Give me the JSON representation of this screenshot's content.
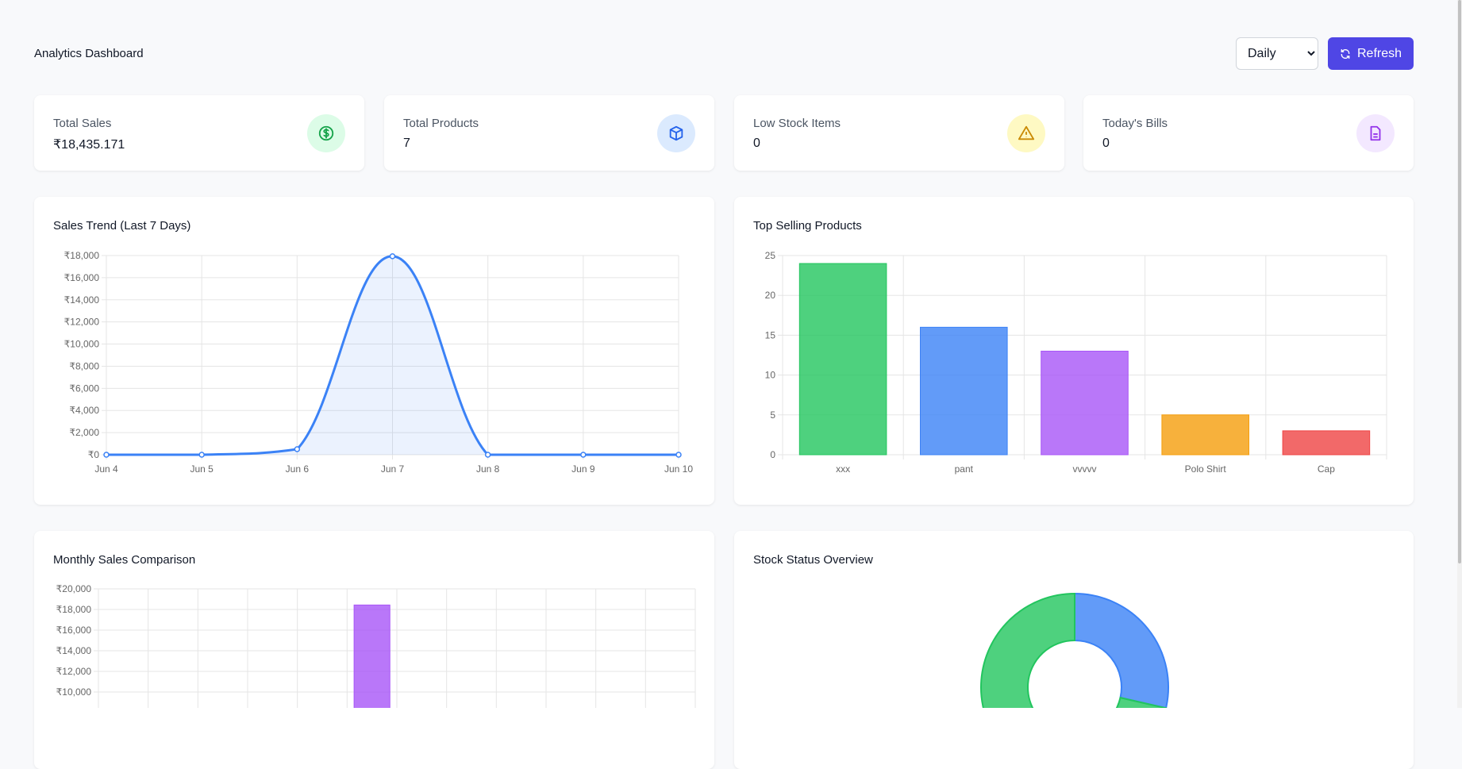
{
  "header": {
    "title": "Analytics Dashboard",
    "period_select": {
      "selected": "Daily"
    },
    "refresh_label": "Refresh"
  },
  "stats": [
    {
      "label": "Total Sales",
      "value": "₹18,435.171",
      "icon": "dollar-circle-icon",
      "bg": "#dcfce7",
      "color": "#16a34a"
    },
    {
      "label": "Total Products",
      "value": "7",
      "icon": "cube-icon",
      "bg": "#dbeafe",
      "color": "#2563eb"
    },
    {
      "label": "Low Stock Items",
      "value": "0",
      "icon": "warning-triangle-icon",
      "bg": "#fef9c3",
      "color": "#ca8a04"
    },
    {
      "label": "Today's Bills",
      "value": "0",
      "icon": "document-icon",
      "bg": "#f3e8ff",
      "color": "#9333ea"
    }
  ],
  "accent": "#4f46e5",
  "chart_data": [
    {
      "type": "line",
      "title": "Sales Trend (Last 7 Days)",
      "categories": [
        "Jun 4",
        "Jun 5",
        "Jun 6",
        "Jun 7",
        "Jun 8",
        "Jun 9",
        "Jun 10"
      ],
      "values": [
        0,
        0,
        500,
        17935,
        0,
        0,
        0
      ],
      "ylim": [
        0,
        18000
      ],
      "yticks": [
        "₹0",
        "₹2,000",
        "₹4,000",
        "₹6,000",
        "₹8,000",
        "₹10,000",
        "₹12,000",
        "₹14,000",
        "₹16,000",
        "₹18,000"
      ],
      "color": "#3b82f6",
      "fill": true,
      "grid": true
    },
    {
      "type": "bar",
      "title": "Top Selling Products",
      "categories": [
        "xxx",
        "pant",
        "vvvvv",
        "Polo Shirt",
        "Cap"
      ],
      "values": [
        24,
        16,
        13,
        5,
        3
      ],
      "ylim": [
        0,
        25
      ],
      "yticks": [
        "0",
        "5",
        "10",
        "15",
        "20",
        "25"
      ],
      "colors": [
        "#22c55e",
        "#3b82f6",
        "#a855f7",
        "#f59e0b",
        "#ef4444"
      ],
      "grid": true
    },
    {
      "type": "bar",
      "title": "Monthly Sales Comparison",
      "category_count": 12,
      "values": [
        0,
        0,
        0,
        0,
        0,
        18435,
        0,
        0,
        0,
        0,
        0,
        0
      ],
      "ylim": [
        0,
        20000
      ],
      "yticks": [
        "₹10,000",
        "₹12,000",
        "₹14,000",
        "₹16,000",
        "₹18,000",
        "₹20,000"
      ],
      "color": "#a855f7",
      "grid": true
    },
    {
      "type": "pie",
      "title": "Stock Status Overview",
      "values": [
        2,
        5
      ],
      "colors": [
        "#3b82f6",
        "#22c55e"
      ],
      "donut": true
    }
  ]
}
